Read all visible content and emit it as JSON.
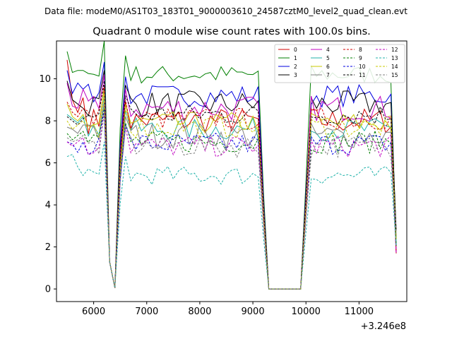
{
  "suptitle": "Data file: modeM0/AS1T03_183T01_9000003610_24587cztM0_level2_quad_clean.evt",
  "chart_data": {
    "type": "line",
    "title": "Quadrant 0 module wise count rates with 100.0s bins.",
    "xlabel": "",
    "ylabel": "",
    "x_offset_label": "+3.246e8",
    "xlim": [
      5300,
      11900
    ],
    "ylim": [
      -0.6,
      11.8
    ],
    "x_ticks": [
      6000,
      7000,
      8000,
      9000,
      10000,
      11000
    ],
    "y_ticks": [
      0,
      2,
      4,
      6,
      8,
      10
    ],
    "grid": false,
    "legend_position": "top-right",
    "legend_columns": 4,
    "gap": [
      9300,
      9900
    ],
    "x": [
      5500,
      5600,
      5700,
      5800,
      5900,
      6000,
      6100,
      6200,
      6300,
      6400,
      6500,
      6600,
      6700,
      6800,
      6900,
      7000,
      7100,
      7200,
      7300,
      7400,
      7500,
      7600,
      7700,
      7800,
      7900,
      8000,
      8100,
      8200,
      8300,
      8400,
      8500,
      8600,
      8700,
      8800,
      8900,
      9000,
      9100,
      9200,
      9300,
      9400,
      9500,
      9600,
      9700,
      9800,
      9900,
      10000,
      10100,
      10200,
      10300,
      10400,
      10500,
      10600,
      10700,
      10800,
      10900,
      11000,
      11100,
      11200,
      11300,
      11400,
      11500,
      11600,
      11700
    ],
    "series": [
      {
        "name": "0",
        "color": "#d00000",
        "dash": "solid",
        "start": [
          10.9,
          9.0,
          8.4,
          9.1
        ],
        "base": 8.0,
        "amp": 0.35
      },
      {
        "name": "1",
        "color": "#007f00",
        "dash": "solid",
        "start": [
          11.3,
          10.3,
          10.4,
          10.4
        ],
        "base": 10.2,
        "amp": 0.25
      },
      {
        "name": "2",
        "color": "#0000e0",
        "dash": "solid",
        "start": [
          10.4,
          9.3,
          9.8,
          9.5
        ],
        "base": 9.2,
        "amp": 0.3
      },
      {
        "name": "3",
        "color": "#000000",
        "dash": "solid",
        "start": [
          9.9,
          9.0,
          8.8,
          8.6
        ],
        "base": 8.8,
        "amp": 0.35
      },
      {
        "name": "4",
        "color": "#c000c0",
        "dash": "solid",
        "start": [
          9.8,
          8.7,
          8.6,
          9.5
        ],
        "base": 8.6,
        "amp": 0.35
      },
      {
        "name": "5",
        "color": "#20b2aa",
        "dash": "solid",
        "start": [
          8.3,
          8.1,
          7.9,
          8.2
        ],
        "base": 7.6,
        "amp": 0.3
      },
      {
        "name": "6",
        "color": "#c8c800",
        "dash": "solid",
        "start": [
          8.8,
          8.2,
          8.0,
          8.3
        ],
        "base": 7.9,
        "amp": 0.3
      },
      {
        "name": "7",
        "color": "#808080",
        "dash": "solid",
        "start": [
          7.7,
          7.6,
          7.4,
          7.8
        ],
        "base": 7.3,
        "amp": 0.35
      },
      {
        "name": "8",
        "color": "#d00000",
        "dash": "dashed",
        "start": [
          8.9,
          8.4,
          8.2,
          8.6
        ],
        "base": 8.1,
        "amp": 0.3
      },
      {
        "name": "9",
        "color": "#007f00",
        "dash": "dashed",
        "start": [
          7.4,
          7.1,
          7.3,
          7.5
        ],
        "base": 7.0,
        "amp": 0.3
      },
      {
        "name": "10",
        "color": "#0000e0",
        "dash": "dashed",
        "start": [
          7.0,
          6.9,
          6.5,
          7.0
        ],
        "base": 6.9,
        "amp": 0.3
      },
      {
        "name": "11",
        "color": "#000000",
        "dash": "dashed",
        "start": [
          8.2,
          8.0,
          7.8,
          8.1
        ],
        "base": 8.3,
        "amp": 0.3
      },
      {
        "name": "12",
        "color": "#c000c0",
        "dash": "dashed",
        "start": [
          7.0,
          6.8,
          7.0,
          7.2
        ],
        "base": 6.8,
        "amp": 0.3
      },
      {
        "name": "13",
        "color": "#20b2aa",
        "dash": "dashed",
        "start": [
          6.3,
          6.4,
          5.8,
          5.4
        ],
        "base": 5.4,
        "amp": 0.25
      },
      {
        "name": "14",
        "color": "#c8c800",
        "dash": "dashed",
        "start": [
          8.0,
          7.6,
          7.8,
          8.0
        ],
        "base": 7.7,
        "amp": 0.3
      },
      {
        "name": "15",
        "color": "#808080",
        "dash": "dashed",
        "start": [
          7.2,
          7.0,
          7.1,
          7.3
        ],
        "base": 6.8,
        "amp": 0.3
      }
    ]
  }
}
